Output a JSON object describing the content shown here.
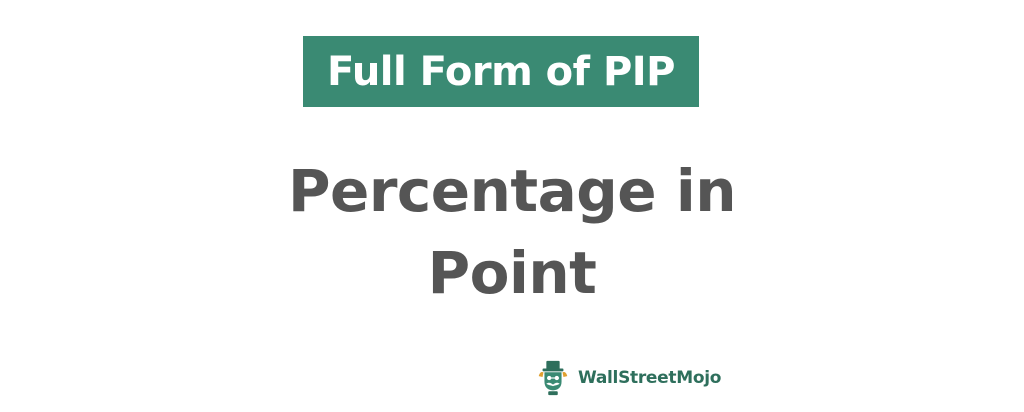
{
  "banner": {
    "title": "Full Form of PIP",
    "color": "#3a8a73"
  },
  "definition": {
    "line1": "Percentage in",
    "line2": "Point"
  },
  "brand": {
    "icon": "wallstreetmojo-logo-icon",
    "name": "WallStreetMojo"
  }
}
